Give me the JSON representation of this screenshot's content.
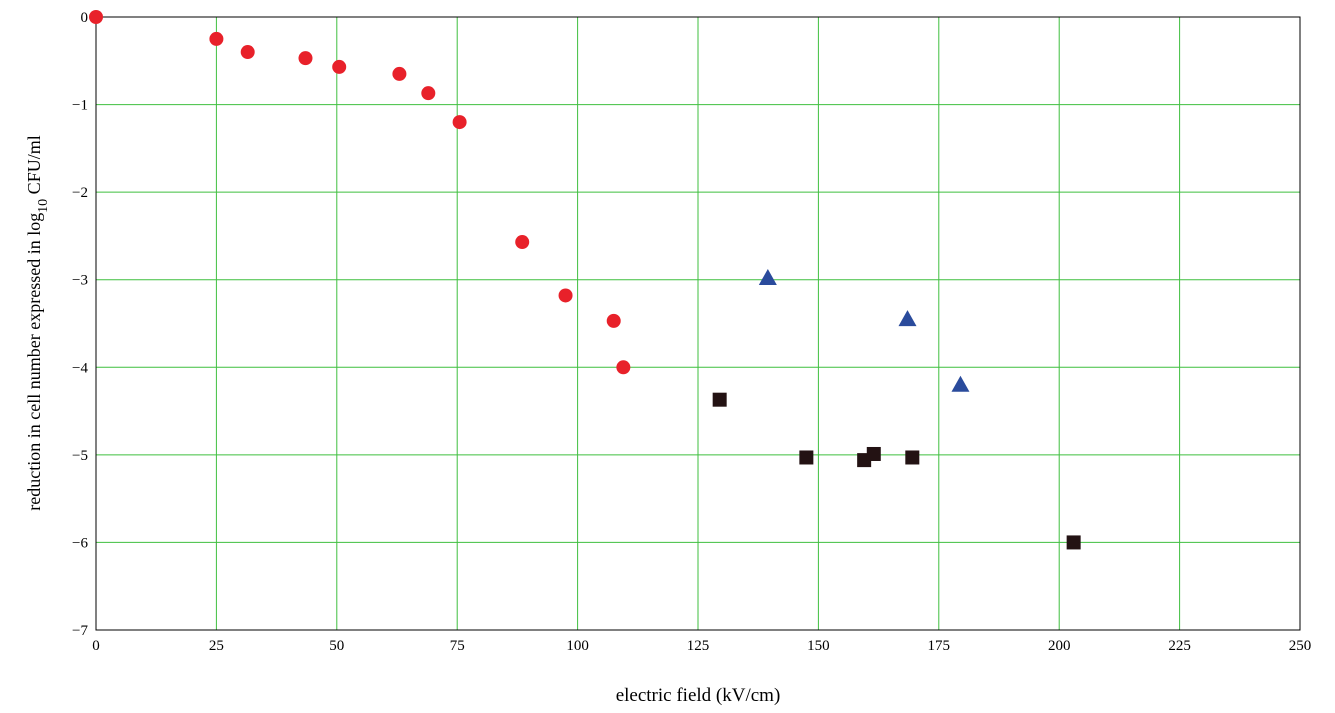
{
  "chart_data": {
    "type": "scatter",
    "xlabel": "electric field (kV/cm)",
    "ylabel": {
      "prefix": "reduction in cell number expressed in log",
      "subscript": "10",
      "suffix": " CFU/ml"
    },
    "xlim": [
      0,
      250
    ],
    "ylim": [
      -7,
      0
    ],
    "xticks": [
      0,
      25,
      50,
      75,
      100,
      125,
      150,
      175,
      200,
      225,
      250
    ],
    "yticks": [
      0,
      -1,
      -2,
      -3,
      -4,
      -5,
      -6,
      -7
    ],
    "grid": true,
    "series": [
      {
        "marker": "circle",
        "color": "#e8212a",
        "points": [
          [
            0,
            0
          ],
          [
            25,
            -0.25
          ],
          [
            31.5,
            -0.4
          ],
          [
            43.5,
            -0.47
          ],
          [
            50.5,
            -0.57
          ],
          [
            63,
            -0.65
          ],
          [
            69,
            -0.87
          ],
          [
            75.5,
            -1.2
          ],
          [
            88.5,
            -2.57
          ],
          [
            97.5,
            -3.18
          ],
          [
            107.5,
            -3.47
          ],
          [
            109.5,
            -4.0
          ]
        ]
      },
      {
        "marker": "triangle",
        "color": "#2a4b9c",
        "points": [
          [
            139.5,
            -2.98
          ],
          [
            168.5,
            -3.45
          ],
          [
            179.5,
            -4.2
          ]
        ]
      },
      {
        "marker": "square",
        "color": "#231213",
        "points": [
          [
            129.5,
            -4.37
          ],
          [
            147.5,
            -5.03
          ],
          [
            159.5,
            -5.06
          ],
          [
            161.5,
            -4.99
          ],
          [
            169.5,
            -5.03
          ],
          [
            203,
            -6.0
          ]
        ]
      }
    ]
  }
}
